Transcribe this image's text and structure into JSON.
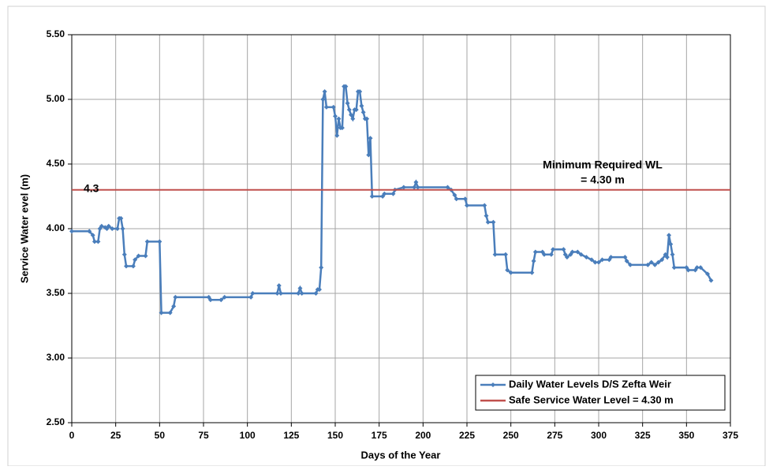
{
  "chart_data": {
    "type": "line",
    "xlabel": "Days of the Year",
    "ylabel": "Service Water evel (m)",
    "xlim": [
      0,
      375
    ],
    "xticks": [
      0,
      25,
      50,
      75,
      100,
      125,
      150,
      175,
      200,
      225,
      250,
      275,
      300,
      325,
      350,
      375
    ],
    "ylim": [
      2.5,
      5.5
    ],
    "yticks": [
      {
        "value": 2.5,
        "label": "2.50"
      },
      {
        "value": 3,
        "label": "3.00"
      },
      {
        "value": 3.5,
        "label": "3.50"
      },
      {
        "value": 4,
        "label": "4.00"
      },
      {
        "value": 4.5,
        "label": "4.50"
      },
      {
        "value": 5,
        "label": "5.00"
      },
      {
        "value": 5.5,
        "label": "5.50"
      }
    ],
    "grid": true,
    "legend": "lower right",
    "annotations": [
      "4.3",
      "Minimum Required WL",
      "= 4.30 m"
    ],
    "series": [
      {
        "name": "Daily Water Levels D/S Zefta Weir",
        "color": "#4a7ebb",
        "markers": true,
        "x": [
          0,
          10,
          12,
          13,
          15,
          16,
          17,
          19,
          20,
          21,
          23,
          26,
          27,
          28,
          29,
          30,
          31,
          35,
          36,
          38,
          42,
          43,
          50,
          51,
          56,
          58,
          59,
          78,
          79,
          85,
          87,
          102,
          103,
          117,
          118,
          119,
          129,
          130,
          131,
          139,
          140,
          141,
          142,
          143,
          144,
          145,
          149,
          150,
          151,
          152,
          153,
          154,
          155,
          156,
          157,
          158,
          159,
          160,
          161,
          162,
          163,
          164,
          165,
          166,
          167,
          168,
          169,
          170,
          171,
          177,
          178,
          183,
          184,
          189,
          195,
          196,
          197,
          214,
          216,
          218,
          219,
          224,
          225,
          235,
          236,
          237,
          240,
          241,
          247,
          248,
          250,
          262,
          263,
          264,
          268,
          269,
          273,
          274,
          280,
          281,
          282,
          284,
          285,
          288,
          290,
          293,
          296,
          298,
          300,
          302,
          306,
          307,
          315,
          316,
          318,
          328,
          330,
          332,
          334,
          336,
          338,
          339,
          340,
          341,
          342,
          343,
          350,
          351,
          355,
          356,
          358,
          362,
          364
        ],
        "values": [
          3.98,
          3.98,
          3.95,
          3.9,
          3.9,
          4.0,
          4.02,
          4.01,
          4.0,
          4.02,
          4.0,
          4.0,
          4.08,
          4.08,
          4.0,
          3.8,
          3.71,
          3.71,
          3.76,
          3.79,
          3.79,
          3.9,
          3.9,
          3.35,
          3.35,
          3.4,
          3.47,
          3.47,
          3.45,
          3.45,
          3.47,
          3.47,
          3.5,
          3.5,
          3.56,
          3.5,
          3.5,
          3.54,
          3.5,
          3.5,
          3.53,
          3.53,
          3.7,
          5.0,
          5.06,
          4.94,
          4.94,
          4.87,
          4.72,
          4.85,
          4.78,
          4.78,
          5.1,
          5.1,
          4.97,
          4.92,
          4.88,
          4.85,
          4.92,
          4.92,
          5.06,
          5.06,
          4.95,
          4.9,
          4.85,
          4.85,
          4.57,
          4.7,
          4.25,
          4.25,
          4.27,
          4.27,
          4.3,
          4.32,
          4.32,
          4.36,
          4.32,
          4.32,
          4.3,
          4.26,
          4.23,
          4.23,
          4.18,
          4.18,
          4.1,
          4.05,
          4.05,
          3.8,
          3.8,
          3.68,
          3.66,
          3.66,
          3.75,
          3.82,
          3.82,
          3.8,
          3.8,
          3.84,
          3.84,
          3.8,
          3.78,
          3.8,
          3.82,
          3.82,
          3.8,
          3.78,
          3.76,
          3.74,
          3.74,
          3.76,
          3.76,
          3.78,
          3.78,
          3.75,
          3.72,
          3.72,
          3.74,
          3.72,
          3.74,
          3.76,
          3.8,
          3.78,
          3.95,
          3.88,
          3.8,
          3.7,
          3.7,
          3.68,
          3.68,
          3.7,
          3.7,
          3.65,
          3.6
        ]
      },
      {
        "name": "Safe Service Water Level = 4.30 m",
        "color": "#c0504d",
        "markers": false,
        "x": [
          0,
          375
        ],
        "values": [
          4.3,
          4.3
        ]
      }
    ]
  }
}
